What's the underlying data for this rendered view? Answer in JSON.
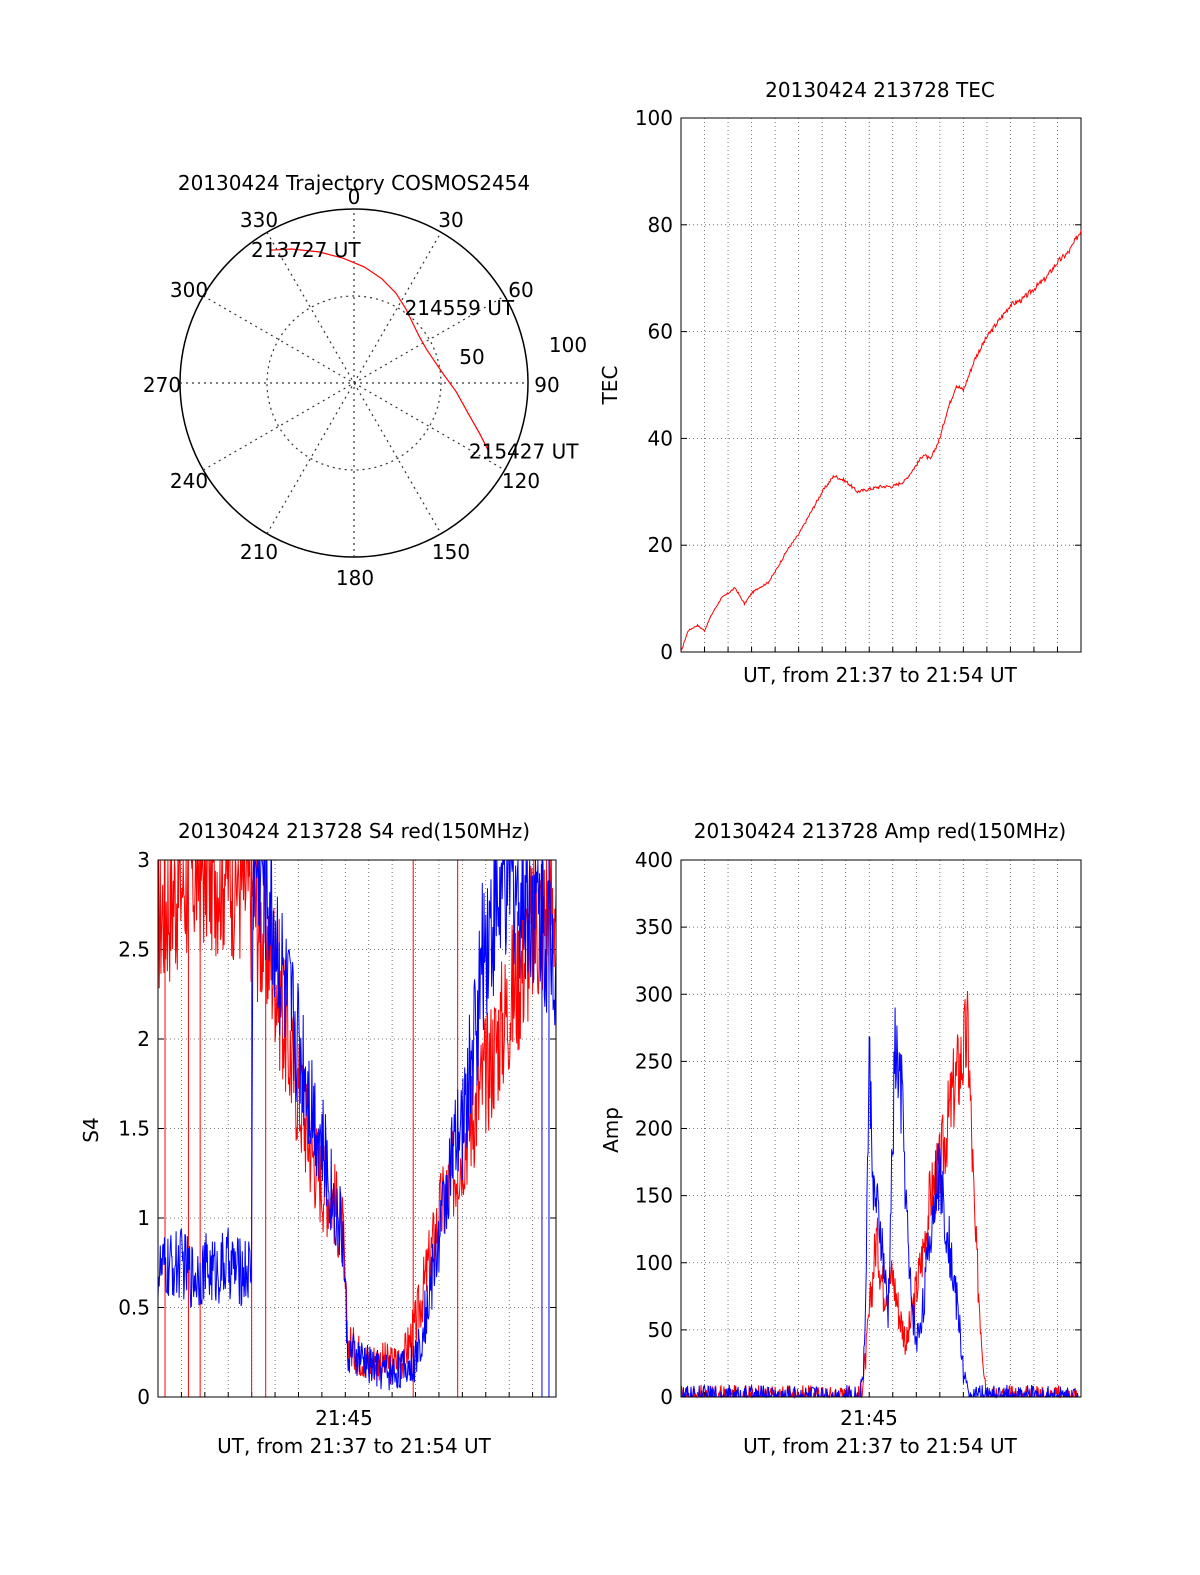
{
  "chart_data": [
    {
      "type": "polar",
      "title": "20130424 Trajectory COSMOS2454",
      "angle_labels": [
        "0",
        "30",
        "60",
        "90",
        "120",
        "150",
        "180",
        "210",
        "240",
        "270",
        "300",
        "330"
      ],
      "radius_labels": [
        "50",
        "100"
      ],
      "series": [
        {
          "color": "#ff0000",
          "azimuth_deg": [
            328,
            335,
            345,
            355,
            5,
            15,
            25,
            35,
            45,
            55,
            65,
            75,
            85,
            95,
            105,
            112,
            117
          ],
          "radius": [
            90,
            85,
            78,
            72,
            67,
            62,
            57,
            52,
            48,
            46,
            46,
            48,
            52,
            59,
            68,
            78,
            87
          ]
        }
      ],
      "annotations": [
        {
          "text": "213727 UT",
          "azimuth_deg": 328,
          "radius": 90
        },
        {
          "text": "214559 UT",
          "azimuth_deg": 55,
          "radius": 46
        },
        {
          "text": "215427 UT",
          "azimuth_deg": 117,
          "radius": 87
        }
      ]
    },
    {
      "type": "line",
      "title": "20130424 213728 TEC",
      "xlabel": "UT, from 21:37 to 21:54 UT",
      "ylabel": "TEC",
      "ylim": [
        0,
        100
      ],
      "yticks": [
        0,
        20,
        40,
        60,
        80,
        100
      ],
      "xlim_min": [
        0,
        17
      ],
      "grid": true,
      "series": [
        {
          "color": "#ff0000",
          "x_min": [
            0.0,
            0.3,
            0.7,
            1.0,
            1.3,
            1.7,
            2.0,
            2.3,
            2.7,
            3.0,
            3.3,
            3.7,
            4.0,
            4.5,
            5.0,
            5.5,
            6.0,
            6.5,
            7.0,
            7.5,
            8.0,
            8.2,
            8.5,
            9.0,
            9.5,
            10.0,
            10.3,
            10.6,
            11.0,
            11.3,
            11.7,
            12.0,
            12.5,
            13.0,
            13.5,
            14.0,
            14.5,
            15.0,
            15.5,
            16.0,
            16.5,
            17.0
          ],
          "values": [
            0,
            4,
            5,
            4,
            7,
            10,
            11,
            12,
            9,
            11,
            12,
            13,
            15,
            19,
            22,
            26,
            30,
            33,
            32,
            30,
            30.5,
            30.7,
            31,
            31,
            32,
            35,
            37,
            36,
            40,
            45,
            50,
            49,
            55,
            59,
            62,
            65,
            66,
            68,
            70,
            73,
            75,
            79
          ]
        }
      ]
    },
    {
      "type": "line",
      "title": "20130424 213728 S4 red(150MHz)",
      "xlabel": "UT, from 21:37 to 21:54 UT",
      "ylabel": "S4",
      "ylim": [
        0,
        3
      ],
      "yticks": [
        "0",
        "0.5",
        "1",
        "1.5",
        "2",
        "2.5",
        "3"
      ],
      "xtick_label": "21:45",
      "xlim_min": [
        0,
        17
      ],
      "grid": true,
      "series": [
        {
          "color": "#ff0000",
          "x_min": [
            0.0,
            1.0,
            2.0,
            3.0,
            4.0,
            5.0,
            5.5,
            6.0,
            6.5,
            7.0,
            7.5,
            7.9,
            8.1,
            8.5,
            9.0,
            9.5,
            10.0,
            10.5,
            11.0,
            11.5,
            12.0,
            12.5,
            13.0,
            14.0,
            15.0,
            16.0,
            17.0
          ],
          "values": [
            2.7,
            2.9,
            3.0,
            3.0,
            2.8,
            2.4,
            2.0,
            1.7,
            1.4,
            1.2,
            1.1,
            0.9,
            0.3,
            0.25,
            0.2,
            0.2,
            0.18,
            0.22,
            0.4,
            0.7,
            1.0,
            1.2,
            1.4,
            1.8,
            2.2,
            2.6,
            2.8
          ],
          "spikes": [
            {
              "x_min": 0.3,
              "from": 0.0,
              "to": 3.0
            },
            {
              "x_min": 1.3,
              "from": 0.0,
              "to": 3.0
            },
            {
              "x_min": 1.8,
              "from": 0.0,
              "to": 3.0
            },
            {
              "x_min": 4.0,
              "from": 0.0,
              "to": 3.0
            },
            {
              "x_min": 4.6,
              "from": 0.0,
              "to": 3.0
            },
            {
              "x_min": 10.9,
              "from": 0.0,
              "to": 3.0
            },
            {
              "x_min": 12.8,
              "from": 0.0,
              "to": 3.0
            }
          ]
        },
        {
          "color": "#0000ff",
          "x_min": [
            0.0,
            0.5,
            1.0,
            1.5,
            2.0,
            2.5,
            3.0,
            3.5,
            4.0,
            4.05,
            4.5,
            5.0,
            5.5,
            6.0,
            6.5,
            7.0,
            7.5,
            7.9,
            8.1,
            8.5,
            9.0,
            9.5,
            10.0,
            10.5,
            11.0,
            11.5,
            12.0,
            12.5,
            13.0,
            13.5,
            14.0,
            15.0,
            16.0,
            17.0
          ],
          "values": [
            0.7,
            0.72,
            0.75,
            0.68,
            0.72,
            0.7,
            0.75,
            0.7,
            0.72,
            3.0,
            3.0,
            2.6,
            2.2,
            2.0,
            1.7,
            1.4,
            1.1,
            0.9,
            0.25,
            0.22,
            0.18,
            0.15,
            0.14,
            0.16,
            0.2,
            0.5,
            0.9,
            1.3,
            1.5,
            2.0,
            2.6,
            2.9,
            2.8,
            2.5
          ],
          "spikes": [
            {
              "x_min": 16.4,
              "from": 0.0,
              "to": 3.0
            },
            {
              "x_min": 16.7,
              "from": 0.0,
              "to": 3.0
            }
          ]
        }
      ]
    },
    {
      "type": "line",
      "title": "20130424 213728 Amp red(150MHz)",
      "xlabel": "UT, from 21:37 to 21:54 UT",
      "ylabel": "Amp",
      "ylim": [
        0,
        400
      ],
      "yticks": [
        0,
        50,
        100,
        150,
        200,
        250,
        300,
        350,
        400
      ],
      "xtick_label": "21:45",
      "xlim_min": [
        0,
        17
      ],
      "grid": true,
      "series": [
        {
          "color": "#ff0000",
          "x_min": [
            0.0,
            7.6,
            7.8,
            8.0,
            8.3,
            8.6,
            9.0,
            9.3,
            9.6,
            10.0,
            10.3,
            10.6,
            11.0,
            11.3,
            11.6,
            11.9,
            12.2,
            12.5,
            12.8,
            13.0,
            17.0
          ],
          "values": [
            0,
            0,
            20,
            60,
            120,
            80,
            90,
            60,
            40,
            80,
            110,
            150,
            170,
            200,
            230,
            250,
            270,
            120,
            40,
            0,
            0
          ]
        },
        {
          "color": "#0000ff",
          "x_min": [
            0.0,
            7.6,
            7.8,
            8.0,
            8.2,
            8.5,
            8.8,
            9.1,
            9.4,
            9.7,
            10.0,
            10.3,
            10.6,
            10.9,
            11.2,
            11.5,
            11.8,
            12.0,
            12.2,
            12.5,
            17.0
          ],
          "values": [
            0,
            0,
            30,
            250,
            150,
            120,
            60,
            260,
            220,
            90,
            40,
            70,
            120,
            170,
            140,
            100,
            60,
            20,
            0,
            0,
            0
          ]
        }
      ]
    }
  ]
}
